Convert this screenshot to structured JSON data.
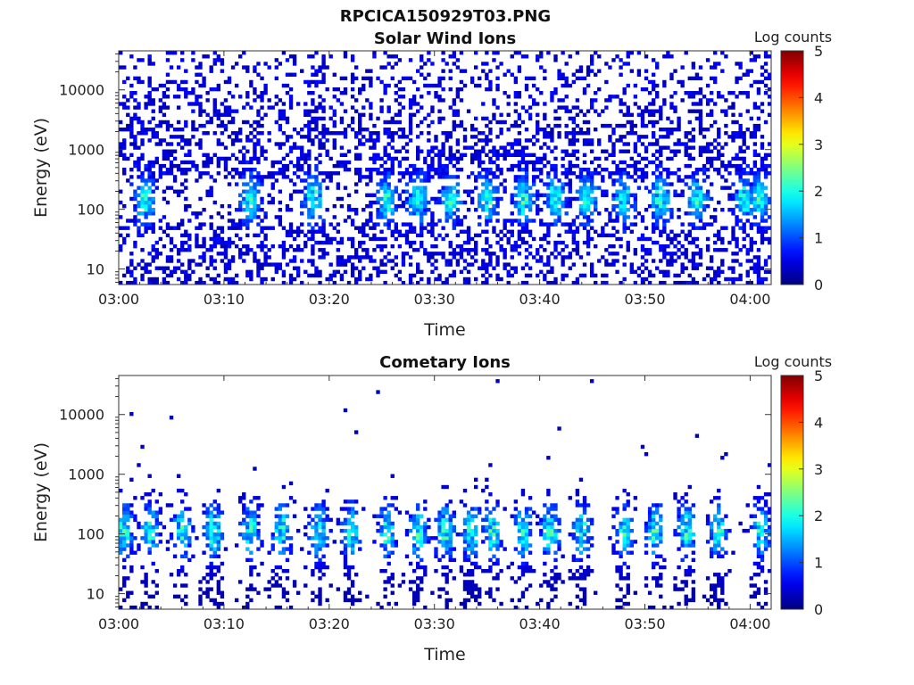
{
  "figure": {
    "title": "RPCICA150929T03.PNG"
  },
  "chart_data": [
    {
      "type": "heatmap",
      "title": "Solar Wind Ions",
      "xlabel": "Time",
      "ylabel": "Energy (eV)",
      "x_ticks": [
        "03:00",
        "03:10",
        "03:20",
        "03:30",
        "03:40",
        "03:50",
        "04:00"
      ],
      "xlim": [
        "03:00",
        "04:02"
      ],
      "y_ticks": [
        "10",
        "100",
        "1000",
        "10000"
      ],
      "ylim": [
        5.5,
        45000
      ],
      "y_scale": "log",
      "colorbar": {
        "label": "Log counts",
        "ticks": [
          "0",
          "1",
          "2",
          "3",
          "4",
          "5"
        ],
        "range": [
          0,
          5
        ],
        "colormap": "jet"
      },
      "features": {
        "background_noise_level": 0.3,
        "burst_times_min": [
          2.5,
          12.5,
          18.5,
          25.5,
          28.5,
          31.5,
          35,
          38.5,
          41.5,
          44.5,
          48,
          51.5,
          55,
          59.5,
          61
        ],
        "burst_energy_center_eV": 150,
        "burst_peak_log_counts": 2.0
      }
    },
    {
      "type": "heatmap",
      "title": "Cometary Ions",
      "xlabel": "Time",
      "ylabel": "Energy (eV)",
      "x_ticks": [
        "03:00",
        "03:10",
        "03:20",
        "03:30",
        "03:40",
        "03:50",
        "04:00"
      ],
      "xlim": [
        "03:00",
        "04:02"
      ],
      "y_ticks": [
        "10",
        "100",
        "1000",
        "10000"
      ],
      "ylim": [
        5.5,
        45000
      ],
      "y_scale": "log",
      "colorbar": {
        "label": "Log counts",
        "ticks": [
          "0",
          "1",
          "2",
          "3",
          "4",
          "5"
        ],
        "range": [
          0,
          5
        ],
        "colormap": "jet"
      },
      "features": {
        "burst_times_min": [
          0.5,
          3,
          6,
          9,
          12.5,
          15.5,
          19,
          22,
          25.5,
          28.5,
          31,
          33.5,
          35.5,
          38.5,
          41,
          44,
          48,
          51,
          54,
          57,
          61
        ],
        "burst_energy_center_eV": 110,
        "burst_peak_log_counts": 2.3
      }
    }
  ]
}
